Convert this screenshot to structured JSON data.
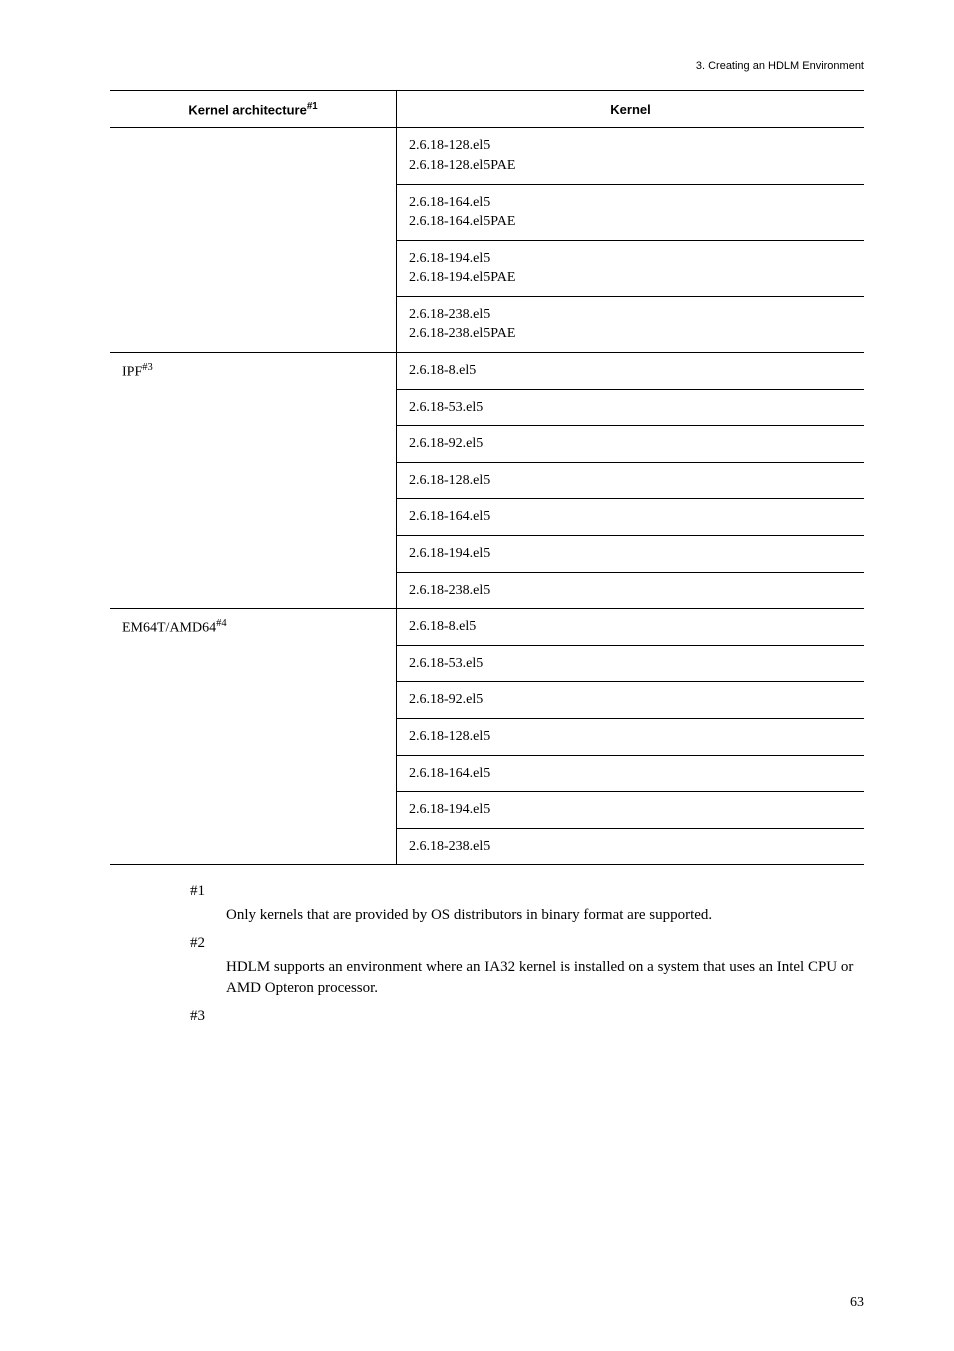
{
  "header": {
    "text": "3.  Creating an HDLM Environment"
  },
  "table": {
    "columns": [
      {
        "label_html": "Kernel architecture<sup>#1</sup>"
      },
      {
        "label": "Kernel"
      }
    ],
    "blocks": [
      {
        "arch": "",
        "kernels": [
          "2.6.18-128.el5\n2.6.18-128.el5PAE",
          "2.6.18-164.el5\n2.6.18-164.el5PAE",
          "2.6.18-194.el5\n2.6.18-194.el5PAE",
          "2.6.18-238.el5\n2.6.18-238.el5PAE"
        ]
      },
      {
        "arch_html": "IPF<sup>#3</sup>",
        "kernels": [
          "2.6.18-8.el5",
          "2.6.18-53.el5",
          "2.6.18-92.el5",
          "2.6.18-128.el5",
          "2.6.18-164.el5",
          "2.6.18-194.el5",
          "2.6.18-238.el5"
        ]
      },
      {
        "arch_html": "EM64T/AMD64<sup>#4</sup>",
        "kernels": [
          "2.6.18-8.el5",
          "2.6.18-53.el5",
          "2.6.18-92.el5",
          "2.6.18-128.el5",
          "2.6.18-164.el5",
          "2.6.18-194.el5",
          "2.6.18-238.el5"
        ]
      }
    ]
  },
  "notes": [
    {
      "num": "#1",
      "body": "Only kernels that are provided by OS distributors in binary format are supported."
    },
    {
      "num": "#2",
      "body": "HDLM supports an environment where an IA32 kernel is installed on a system that uses an Intel CPU or AMD Opteron processor."
    },
    {
      "num": "#3",
      "body": ""
    }
  ],
  "page_number": "63"
}
